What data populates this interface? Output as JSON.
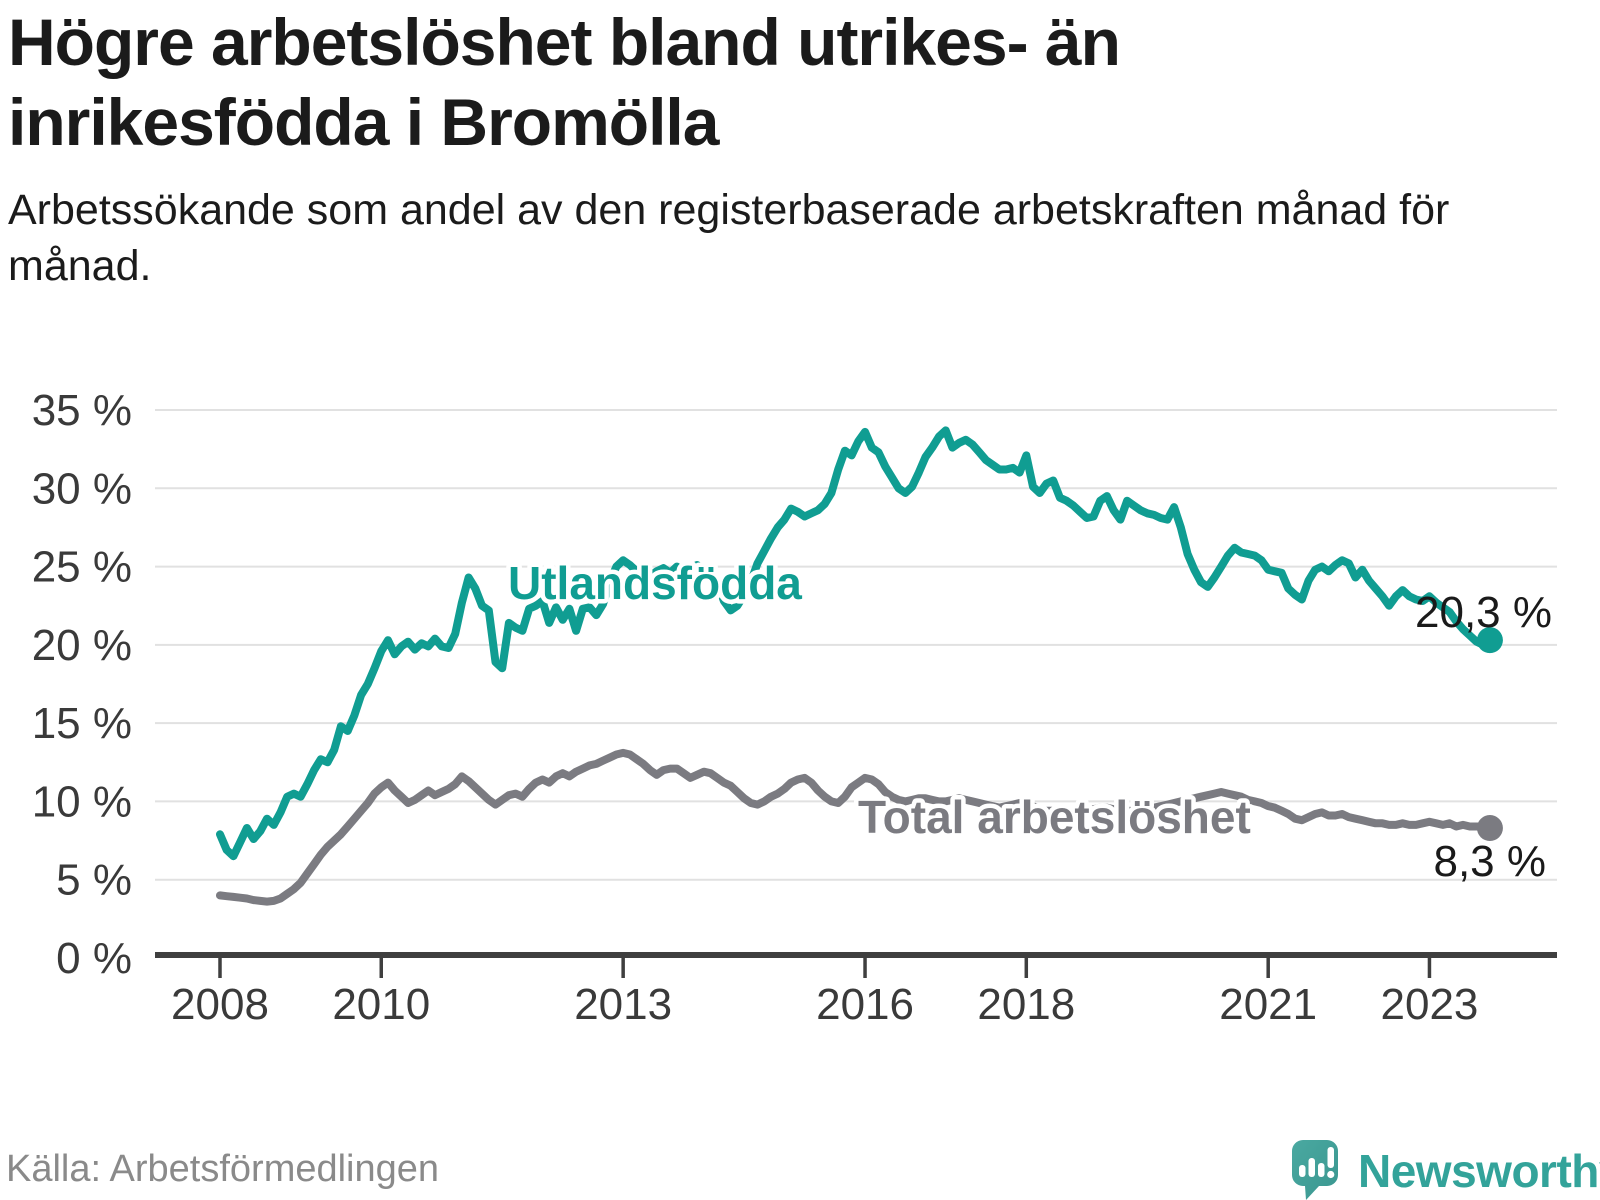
{
  "header": {
    "title": "Högre arbetslöshet bland utrikes- än inrikesfödda i Bromölla",
    "subtitle": "Arbetssökande som andel av den registerbaserade arbetskraften månad för månad."
  },
  "footer": {
    "source": "Källa: Arbetsförmedlingen",
    "brand": "Newsworthy"
  },
  "colors": {
    "foreign_born_line": "#109d92",
    "total_line": "#7b7b81",
    "axis": "#3f3f3f",
    "gridline": "#e1e1e1",
    "tick_label": "#3a3a3a",
    "end_label": "#1a1a1a",
    "brand_teal": "#45a59d"
  },
  "chart_data": {
    "type": "line",
    "title": "Högre arbetslöshet bland utrikes- än inrikesfödda i Bromölla",
    "xlabel": "",
    "ylabel": "",
    "ylim": [
      0,
      35
    ],
    "grid": "horizontal",
    "legend_position": "inline-labels",
    "x_start_year": 2008,
    "x_start_month": 1,
    "frequency": "monthly",
    "x_ticks": [
      2008,
      2010,
      2013,
      2016,
      2018,
      2021,
      2023
    ],
    "y_ticks": [
      {
        "value": 0,
        "label": "0 %"
      },
      {
        "value": 5,
        "label": "5 %"
      },
      {
        "value": 10,
        "label": "10 %"
      },
      {
        "value": 15,
        "label": "15 %"
      },
      {
        "value": 20,
        "label": "20 %"
      },
      {
        "value": 25,
        "label": "25 %"
      },
      {
        "value": 30,
        "label": "30 %"
      },
      {
        "value": 35,
        "label": "35 %"
      }
    ],
    "series": [
      {
        "name": "Utlandsfödda",
        "color": "#109d92",
        "end_label": "20,3 %",
        "end_value": 20.3,
        "values": [
          7.9,
          6.9,
          6.5,
          7.4,
          8.3,
          7.6,
          8.1,
          8.9,
          8.5,
          9.3,
          10.3,
          10.5,
          10.3,
          11.1,
          12.0,
          12.7,
          12.5,
          13.3,
          14.8,
          14.5,
          15.5,
          16.8,
          17.5,
          18.5,
          19.6,
          20.3,
          19.4,
          19.9,
          20.2,
          19.7,
          20.1,
          19.9,
          20.4,
          19.9,
          19.8,
          20.7,
          22.7,
          24.3,
          23.6,
          22.5,
          22.2,
          18.9,
          18.5,
          21.4,
          21.1,
          20.9,
          22.3,
          22.5,
          22.8,
          21.4,
          22.4,
          21.6,
          22.3,
          20.9,
          22.3,
          22.4,
          21.9,
          22.6,
          24.0,
          25.0,
          25.4,
          25.1,
          24.7,
          24.9,
          24.4,
          24.7,
          24.9,
          24.6,
          25.0,
          24.7,
          24.9,
          25.1,
          24.8,
          24.4,
          24.0,
          22.8,
          22.2,
          22.5,
          23.2,
          24.0,
          25.2,
          26.0,
          26.8,
          27.5,
          28.0,
          28.7,
          28.5,
          28.2,
          28.4,
          28.6,
          29.0,
          29.7,
          31.2,
          32.4,
          32.1,
          33.0,
          33.6,
          32.6,
          32.3,
          31.4,
          30.7,
          30.0,
          29.7,
          30.1,
          31.0,
          32.0,
          32.6,
          33.3,
          33.7,
          32.6,
          32.9,
          33.1,
          32.8,
          32.3,
          31.8,
          31.5,
          31.2,
          31.2,
          31.3,
          31.0,
          32.1,
          30.1,
          29.7,
          30.3,
          30.5,
          29.4,
          29.2,
          28.9,
          28.5,
          28.1,
          28.2,
          29.2,
          29.5,
          28.6,
          28.0,
          29.2,
          28.9,
          28.6,
          28.4,
          28.3,
          28.1,
          28.0,
          28.8,
          27.5,
          25.8,
          24.8,
          24.0,
          23.7,
          24.3,
          25.0,
          25.7,
          26.2,
          25.9,
          25.8,
          25.7,
          25.4,
          24.8,
          24.7,
          24.6,
          23.6,
          23.2,
          22.9,
          24.1,
          24.8,
          25.0,
          24.7,
          25.1,
          25.4,
          25.2,
          24.3,
          24.8,
          24.1,
          23.6,
          23.1,
          22.5,
          23.1,
          23.5,
          23.1,
          22.9,
          22.8,
          23.1,
          22.7,
          22.4,
          22.1,
          21.5,
          21.0,
          20.6,
          20.2,
          20.0,
          20.3
        ]
      },
      {
        "name": "Total arbetslöshet",
        "color": "#7b7b81",
        "end_label": "8,3 %",
        "end_value": 8.3,
        "values": [
          4.0,
          3.95,
          3.9,
          3.85,
          3.8,
          3.7,
          3.65,
          3.6,
          3.65,
          3.8,
          4.1,
          4.4,
          4.8,
          5.4,
          6.0,
          6.6,
          7.1,
          7.5,
          7.9,
          8.4,
          8.9,
          9.4,
          9.9,
          10.5,
          10.9,
          11.2,
          10.7,
          10.3,
          9.9,
          10.1,
          10.4,
          10.7,
          10.4,
          10.6,
          10.8,
          11.1,
          11.6,
          11.3,
          10.9,
          10.5,
          10.1,
          9.8,
          10.1,
          10.4,
          10.5,
          10.3,
          10.8,
          11.2,
          11.4,
          11.2,
          11.6,
          11.8,
          11.6,
          11.9,
          12.1,
          12.3,
          12.4,
          12.6,
          12.8,
          13.0,
          13.1,
          13.0,
          12.7,
          12.4,
          12.0,
          11.7,
          12.0,
          12.1,
          12.1,
          11.8,
          11.5,
          11.7,
          11.9,
          11.8,
          11.5,
          11.2,
          11.0,
          10.6,
          10.2,
          9.9,
          9.8,
          10.0,
          10.3,
          10.5,
          10.8,
          11.2,
          11.4,
          11.5,
          11.2,
          10.7,
          10.3,
          10.0,
          9.9,
          10.3,
          10.9,
          11.2,
          11.5,
          11.4,
          11.1,
          10.6,
          10.3,
          10.1,
          10.0,
          10.1,
          10.2,
          10.2,
          10.1,
          10.0,
          10.0,
          10.1,
          10.2,
          10.1,
          10.0,
          9.9,
          9.8,
          9.7,
          9.6,
          9.7,
          9.8,
          9.9,
          9.9,
          9.7,
          9.5,
          9.4,
          9.4,
          9.3,
          9.3,
          9.4,
          9.4,
          9.5,
          9.5,
          9.6,
          9.6,
          9.5,
          9.5,
          9.4,
          9.4,
          9.5,
          9.5,
          9.6,
          9.7,
          9.8,
          9.9,
          10.0,
          10.1,
          10.2,
          10.3,
          10.4,
          10.5,
          10.6,
          10.5,
          10.4,
          10.3,
          10.1,
          10.0,
          9.9,
          9.7,
          9.6,
          9.4,
          9.2,
          8.9,
          8.8,
          9.0,
          9.2,
          9.3,
          9.1,
          9.1,
          9.2,
          9.0,
          8.9,
          8.8,
          8.7,
          8.6,
          8.6,
          8.5,
          8.5,
          8.6,
          8.5,
          8.5,
          8.6,
          8.7,
          8.6,
          8.5,
          8.6,
          8.4,
          8.5,
          8.4,
          8.4,
          8.4,
          8.3
        ]
      }
    ]
  }
}
